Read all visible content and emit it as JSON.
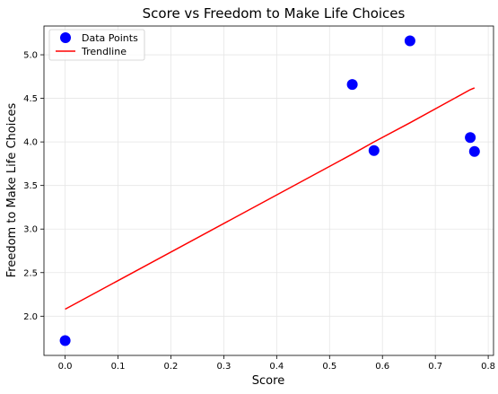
{
  "chart_data": {
    "type": "scatter",
    "title": "Score vs Freedom to Make Life Choices",
    "xlabel": "Score",
    "ylabel": "Freedom to Make Life Choices",
    "xlim": [
      -0.04,
      0.81
    ],
    "ylim": [
      1.55,
      5.33
    ],
    "xticks": [
      0.0,
      0.1,
      0.2,
      0.3,
      0.4,
      0.5,
      0.6,
      0.7,
      0.8
    ],
    "xtick_labels": [
      "0.0",
      "0.1",
      "0.2",
      "0.3",
      "0.4",
      "0.5",
      "0.6",
      "0.7",
      "0.8"
    ],
    "yticks": [
      2.0,
      2.5,
      3.0,
      3.5,
      4.0,
      4.5,
      5.0
    ],
    "ytick_labels": [
      "2.0",
      "2.5",
      "3.0",
      "3.5",
      "4.0",
      "4.5",
      "5.0"
    ],
    "grid": true,
    "legend_position": "top-left",
    "series": [
      {
        "name": "Data Points",
        "kind": "scatter",
        "color": "#0000ff",
        "x": [
          0.0,
          0.543,
          0.584,
          0.652,
          0.766,
          0.774
        ],
        "y": [
          1.72,
          4.66,
          3.9,
          5.16,
          4.05,
          3.89
        ]
      },
      {
        "name": "Trendline",
        "kind": "line",
        "color": "#ff0000",
        "x": [
          0.0,
          0.543,
          0.584,
          0.652,
          0.766,
          0.774
        ],
        "y": [
          2.08,
          3.86,
          4.0,
          4.22,
          4.6,
          4.62
        ]
      }
    ]
  }
}
